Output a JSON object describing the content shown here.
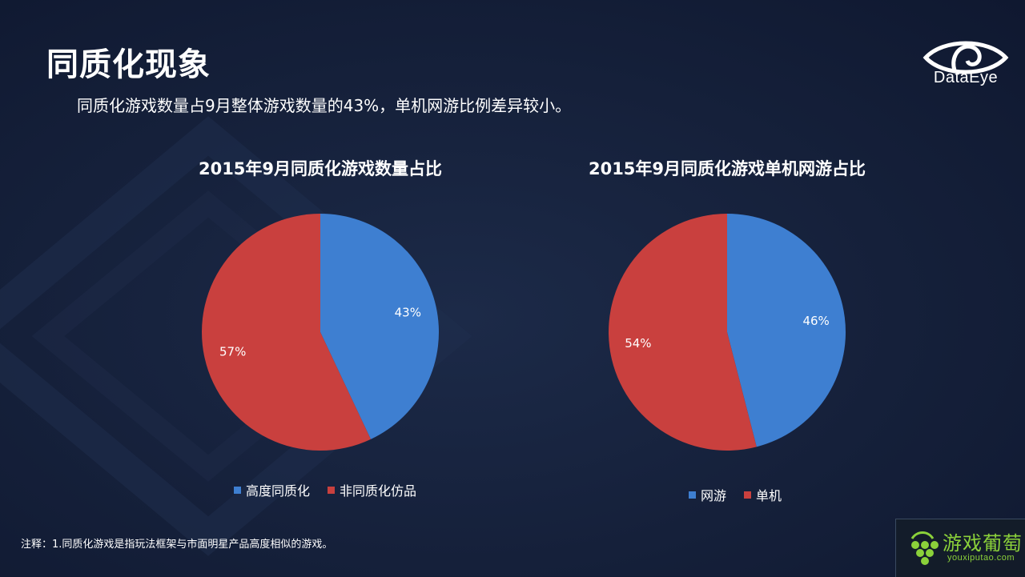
{
  "page": {
    "title": "同质化现象",
    "subtitle": "同质化游戏数量占9月整体游戏数量的43%，单机网游比例差异较小。",
    "footnote": "注释：1.同质化游戏是指玩法框架与市面明星产品高度相似的游戏。"
  },
  "logo": {
    "text": "DataEye",
    "icon": "eye-icon"
  },
  "watermark": {
    "text_cn": "游戏葡萄",
    "text_en": "youxiputao.com",
    "icon": "grape-icon"
  },
  "colors": {
    "background": "#15203a",
    "blue": "#3e7fd1",
    "red": "#c9403e"
  },
  "chart_data": [
    {
      "type": "pie",
      "title": "2015年9月同质化游戏数量占比",
      "slices": [
        {
          "name": "高度同质化",
          "value": 43,
          "label": "43%",
          "color": "#3e7fd1"
        },
        {
          "name": "非同质化仿品",
          "value": 57,
          "label": "57%",
          "color": "#c9403e"
        }
      ],
      "legend_position": "bottom"
    },
    {
      "type": "pie",
      "title": "2015年9月同质化游戏单机网游占比",
      "slices": [
        {
          "name": "网游",
          "value": 46,
          "label": "46%",
          "color": "#3e7fd1"
        },
        {
          "name": "单机",
          "value": 54,
          "label": "54%",
          "color": "#c9403e"
        }
      ],
      "legend_position": "bottom"
    }
  ]
}
